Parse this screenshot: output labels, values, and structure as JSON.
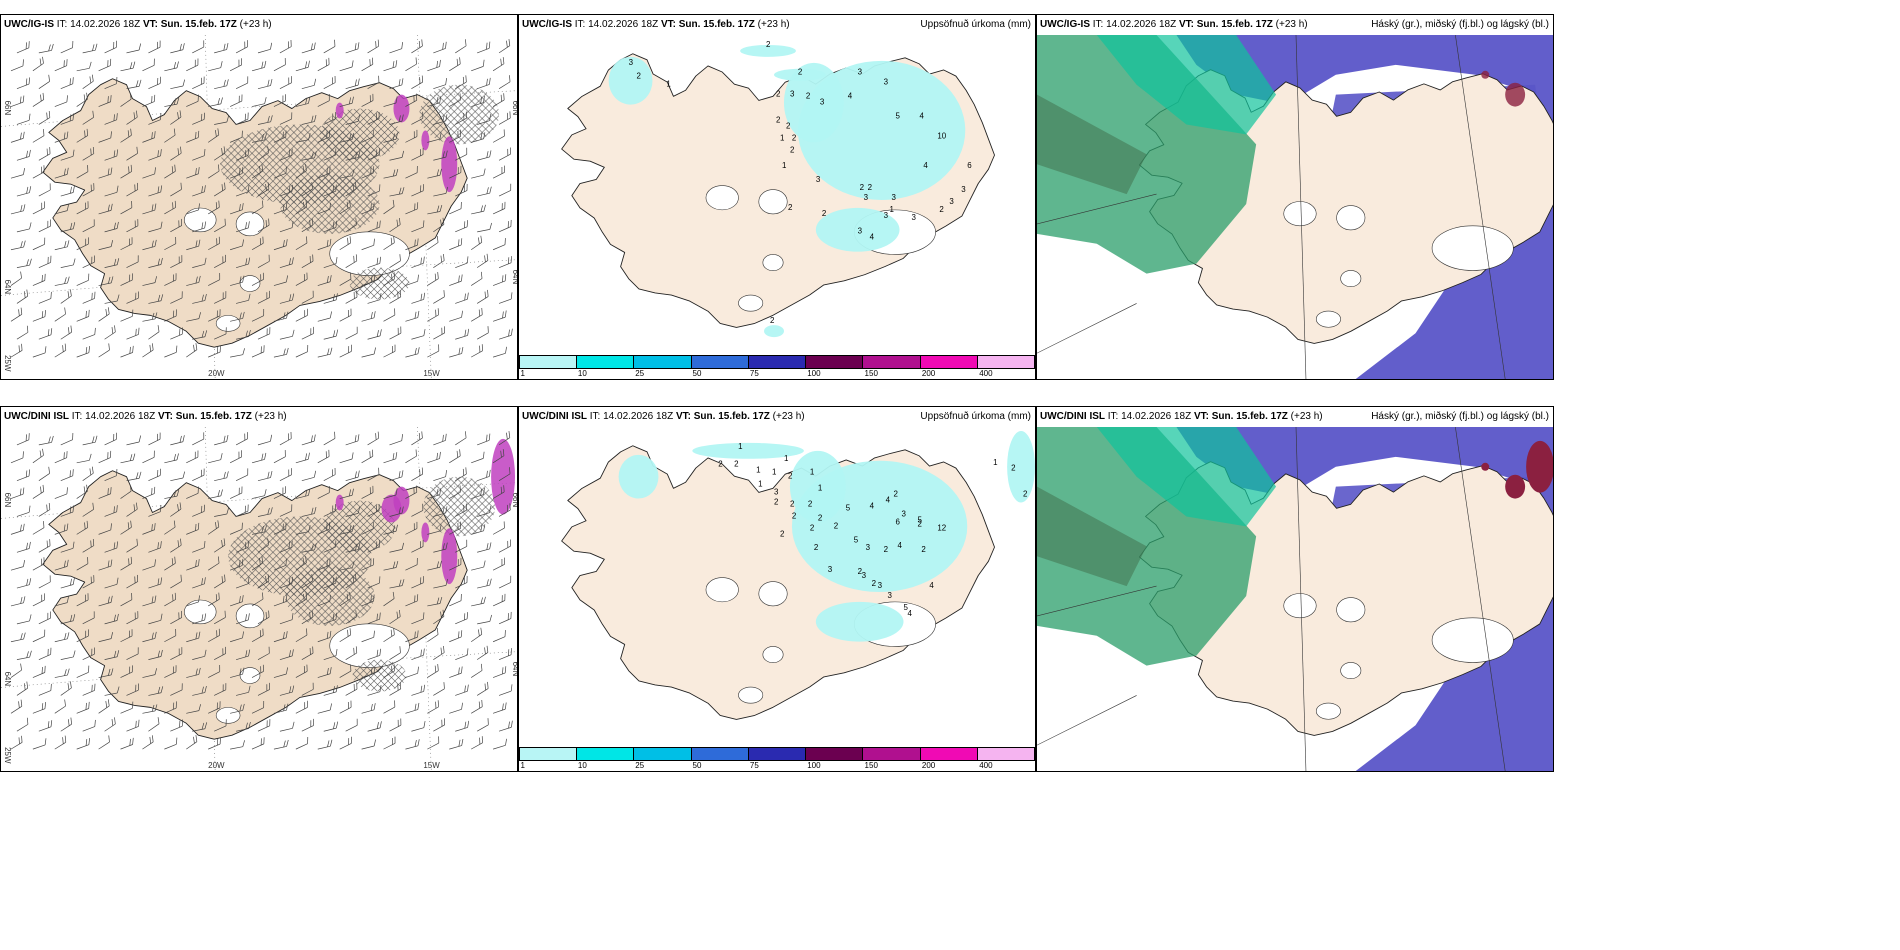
{
  "panels": [
    {
      "model": "UWC/IG-IS",
      "it_label": "IT:",
      "it_value": "14.02.2026 18Z",
      "vt_label": "VT:",
      "vt_value": "Sun. 15.feb. 17Z",
      "lead": "(+23 h)",
      "product": ""
    },
    {
      "model": "UWC/IG-IS",
      "it_label": "IT:",
      "it_value": "14.02.2026 18Z",
      "vt_label": "VT:",
      "vt_value": "Sun. 15.feb. 17Z",
      "lead": "(+23 h)",
      "product": "Uppsöfnuð úrkoma (mm)"
    },
    {
      "model": "UWC/IG-IS",
      "it_label": "IT:",
      "it_value": "14.02.2026 18Z",
      "vt_label": "VT:",
      "vt_value": "Sun. 15.feb. 17Z",
      "lead": "(+23 h)",
      "product": "Háský (gr.), miðský (fj.bl.) og lágský (bl.)"
    },
    {
      "model": "UWC/DINI ISL",
      "it_label": "IT:",
      "it_value": "14.02.2026 18Z",
      "vt_label": "VT:",
      "vt_value": "Sun. 15.feb. 17Z",
      "lead": "(+23 h)",
      "product": ""
    },
    {
      "model": "UWC/DINI ISL",
      "it_label": "IT:",
      "it_value": "14.02.2026 18Z",
      "vt_label": "VT:",
      "vt_value": "Sun. 15.feb. 17Z",
      "lead": "(+23 h)",
      "product": "Uppsöfnuð úrkoma (mm)"
    },
    {
      "model": "UWC/DINI ISL",
      "it_label": "IT:",
      "it_value": "14.02.2026 18Z",
      "vt_label": "VT:",
      "vt_value": "Sun. 15.feb. 17Z",
      "lead": "(+23 h)",
      "product": "Háský (gr.), miðský (fj.bl.) og lágský (bl.)"
    }
  ],
  "axis_labels": {
    "lat_66": "66N",
    "lat_64": "64N",
    "lon_25w": "25W",
    "lon_20w": "20W",
    "lon_15w": "15W"
  },
  "colorbar": {
    "colors": [
      "#b8f5f5",
      "#00e6e6",
      "#00bfe6",
      "#2e6bd9",
      "#2a2ab0",
      "#6b0050",
      "#b0108f",
      "#f00ab4",
      "#f5b4f0"
    ],
    "labels": [
      "1",
      "10",
      "25",
      "50",
      "75",
      "100",
      "150",
      "200",
      "400"
    ]
  },
  "precip_labels": {
    "igis": [
      "2",
      "2",
      "3",
      "2",
      "1",
      "3",
      "3",
      "2",
      "3",
      "2",
      "3",
      "4",
      "5",
      "4",
      "10",
      "2",
      "2",
      "2",
      "1",
      "2",
      "1",
      "4",
      "6",
      "3",
      "2",
      "3",
      "2",
      "3",
      "1",
      "2",
      "2",
      "3",
      "3",
      "4",
      "3",
      "2",
      "3",
      "3",
      "2"
    ],
    "dini": [
      "1",
      "1",
      "2",
      "2",
      "1",
      "1",
      "2",
      "1",
      "1",
      "3",
      "1",
      "2",
      "2",
      "2",
      "2",
      "2",
      "4",
      "2",
      "5",
      "4",
      "3",
      "2",
      "6",
      "5",
      "12",
      "2",
      "2",
      "2",
      "2",
      "5",
      "3",
      "2",
      "4",
      "2",
      "3",
      "2",
      "3",
      "2",
      "3",
      "3",
      "5",
      "4",
      "4",
      "1",
      "2",
      "2"
    ]
  },
  "colors": {
    "land": "#efdcc6",
    "land_light": "#f9ebdd",
    "cyan_precip": "#b2f5f3",
    "high_cloud_green": "#2a9d6a",
    "mid_cloud_teal": "#10c39b",
    "low_cloud_blue": "#5a55c8",
    "pink_precip": "#c040c0"
  }
}
